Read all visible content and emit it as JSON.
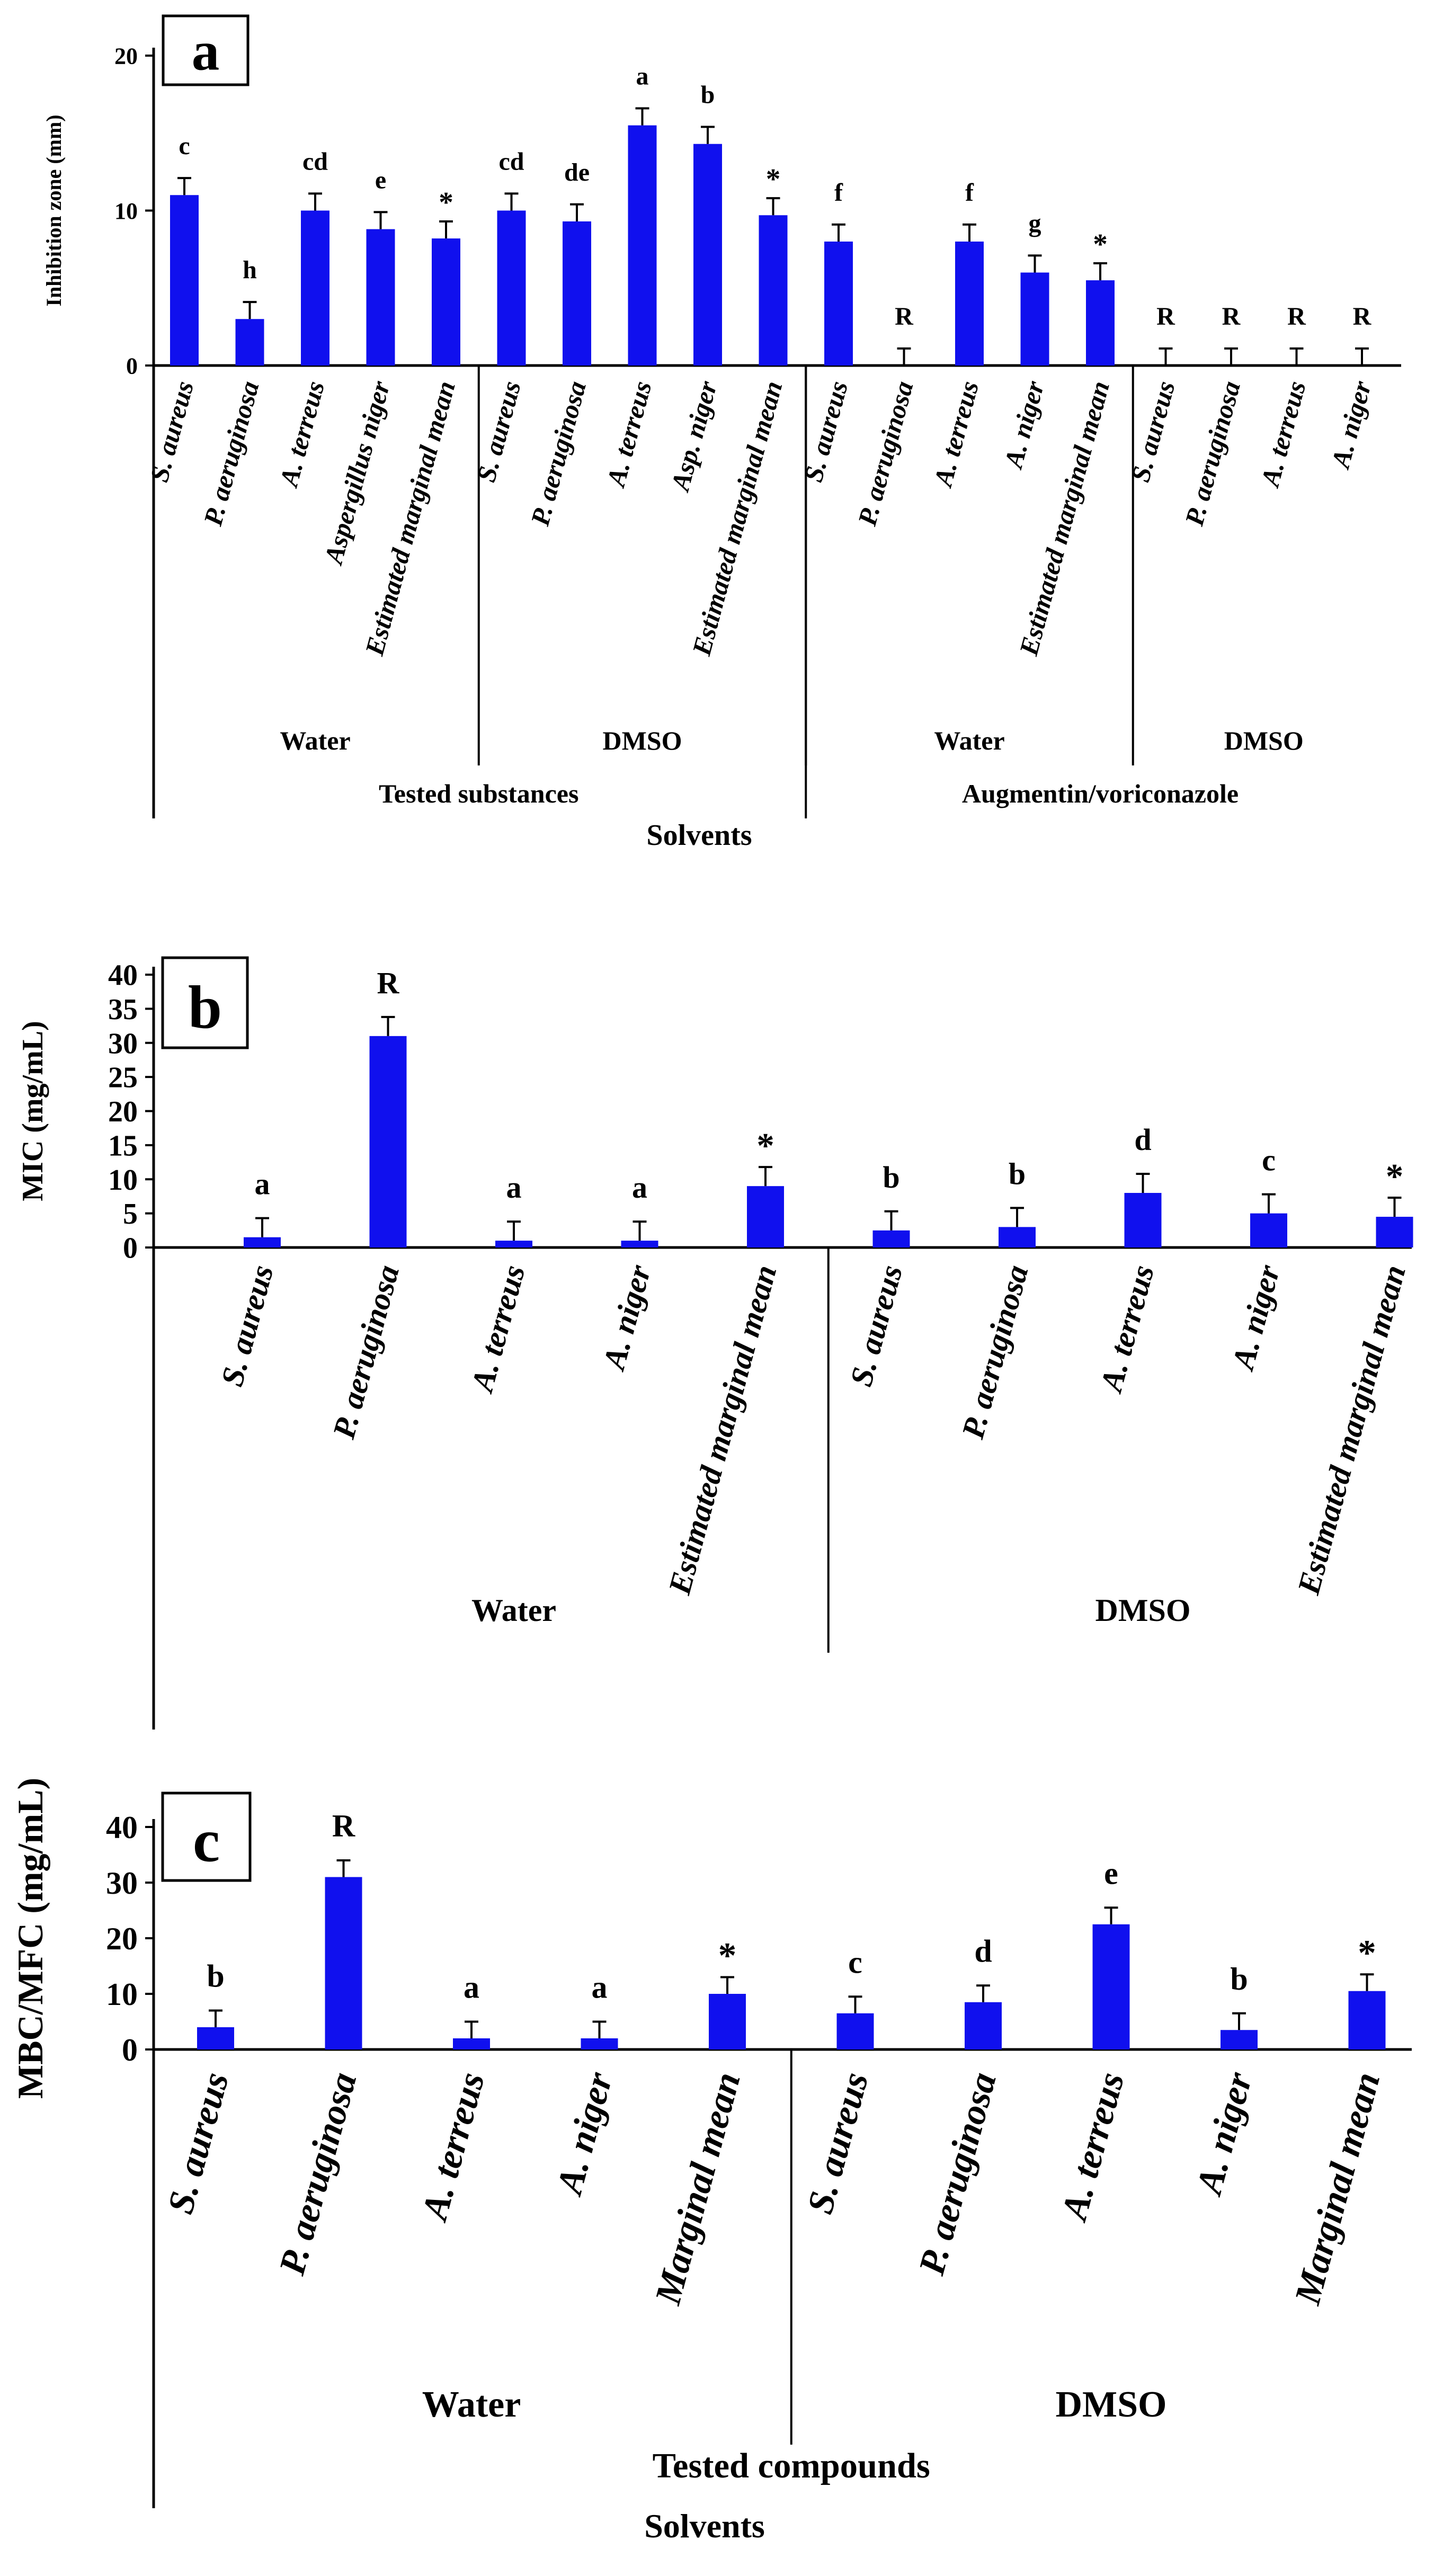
{
  "colors": {
    "bar": "#1010ee",
    "axis": "#000000",
    "text": "#000000"
  },
  "chart_data": [
    {
      "panel": "a",
      "type": "bar",
      "ylabel": "Inhibition zone (mm)",
      "ylim": [
        0,
        20
      ],
      "yticks": [
        0,
        10,
        20
      ],
      "categories": [
        "S. aureus",
        "P. aeruginosa",
        "A. terreus",
        "Aspergillus niger",
        "Estimated marginal mean",
        "S. aureus",
        "P. aeruginosa",
        "A. terreus",
        "Asp. niger",
        "Estimated marginal mean",
        "S. aureus",
        "P. aeruginosa",
        "A. terreus",
        "A. niger",
        "Estimated marginal mean",
        "S. aureus",
        "P. aeruginosa",
        "A. terreus",
        "A. niger"
      ],
      "values": [
        11,
        3,
        10,
        8.8,
        8.2,
        10,
        9.3,
        15.5,
        14.3,
        9.7,
        8,
        0,
        8,
        6,
        5.5,
        0,
        0,
        0,
        0
      ],
      "errors": [
        1.1,
        1.1,
        1.1,
        1.1,
        1.1,
        1.1,
        1.1,
        1.1,
        1.1,
        1.1,
        1.1,
        1.1,
        1.1,
        1.1,
        1.1,
        1.1,
        1.1,
        1.1,
        1.1
      ],
      "letters": [
        "c",
        "h",
        "cd",
        "e",
        "*",
        "cd",
        "de",
        "a",
        "b",
        "*",
        "f",
        "R",
        "f",
        "g",
        "*",
        "R",
        "R",
        "R",
        "R"
      ],
      "groups": [
        {
          "label": "Water",
          "start": 0,
          "end": 4
        },
        {
          "label": "DMSO",
          "start": 5,
          "end": 9
        },
        {
          "label": "Water",
          "start": 10,
          "end": 14
        },
        {
          "label": "DMSO",
          "start": 15,
          "end": 18
        }
      ],
      "supergroups": [
        {
          "label": "Tested substances",
          "start": 0,
          "end": 9
        },
        {
          "label": "Augmentin/voriconazole",
          "start": 10,
          "end": 18
        }
      ],
      "xlabel": "Solvents"
    },
    {
      "panel": "b",
      "type": "bar",
      "ylabel": "MIC (mg/mL)",
      "ylim": [
        0,
        40
      ],
      "yticks": [
        0,
        5,
        10,
        15,
        20,
        25,
        30,
        35,
        40
      ],
      "categories": [
        "S. aureus",
        "P. aeruginosa",
        "A. terreus",
        "A. niger",
        "Estimated marginal mean",
        "S. aureus",
        "P. aeruginosa",
        "A. terreus",
        "A. niger",
        "Estimated marginal mean"
      ],
      "values": [
        1.5,
        31,
        1,
        1,
        9,
        2.5,
        3,
        8,
        5,
        4.5
      ],
      "errors": [
        2.8,
        2.8,
        2.8,
        2.8,
        2.8,
        2.8,
        2.8,
        2.8,
        2.8,
        2.8
      ],
      "letters": [
        "a",
        "R",
        "a",
        "a",
        "*",
        "b",
        "b",
        "d",
        "c",
        "*"
      ],
      "groups": [
        {
          "label": "Water",
          "start": 0,
          "end": 4
        },
        {
          "label": "DMSO",
          "start": 5,
          "end": 9
        }
      ],
      "supergroups": [],
      "xlabel": ""
    },
    {
      "panel": "c",
      "type": "bar",
      "ylabel": "MBC/MFC (mg/mL)",
      "ylim": [
        0,
        40
      ],
      "yticks": [
        0,
        10,
        20,
        30,
        40
      ],
      "categories": [
        "S. aureus",
        "P. aeruginosa",
        "A. terreus",
        "A. niger",
        "Marginal mean",
        "S. aureus",
        "P. aeruginosa",
        "A. terreus",
        "A. niger",
        "Marginal mean"
      ],
      "values": [
        4,
        31,
        2,
        2,
        10,
        6.5,
        8.5,
        22.5,
        3.5,
        10.5
      ],
      "errors": [
        3,
        3,
        3,
        3,
        3,
        3,
        3,
        3,
        3,
        3
      ],
      "letters": [
        "b",
        "R",
        "a",
        "a",
        "*",
        "c",
        "d",
        "e",
        "b",
        "*"
      ],
      "groups": [
        {
          "label": "Water",
          "start": 0,
          "end": 4
        },
        {
          "label": "DMSO",
          "start": 5,
          "end": 9
        }
      ],
      "supergroups": [
        {
          "label": "Tested compounds",
          "start": 0,
          "end": 9
        }
      ],
      "xlabel": "Solvents"
    }
  ]
}
